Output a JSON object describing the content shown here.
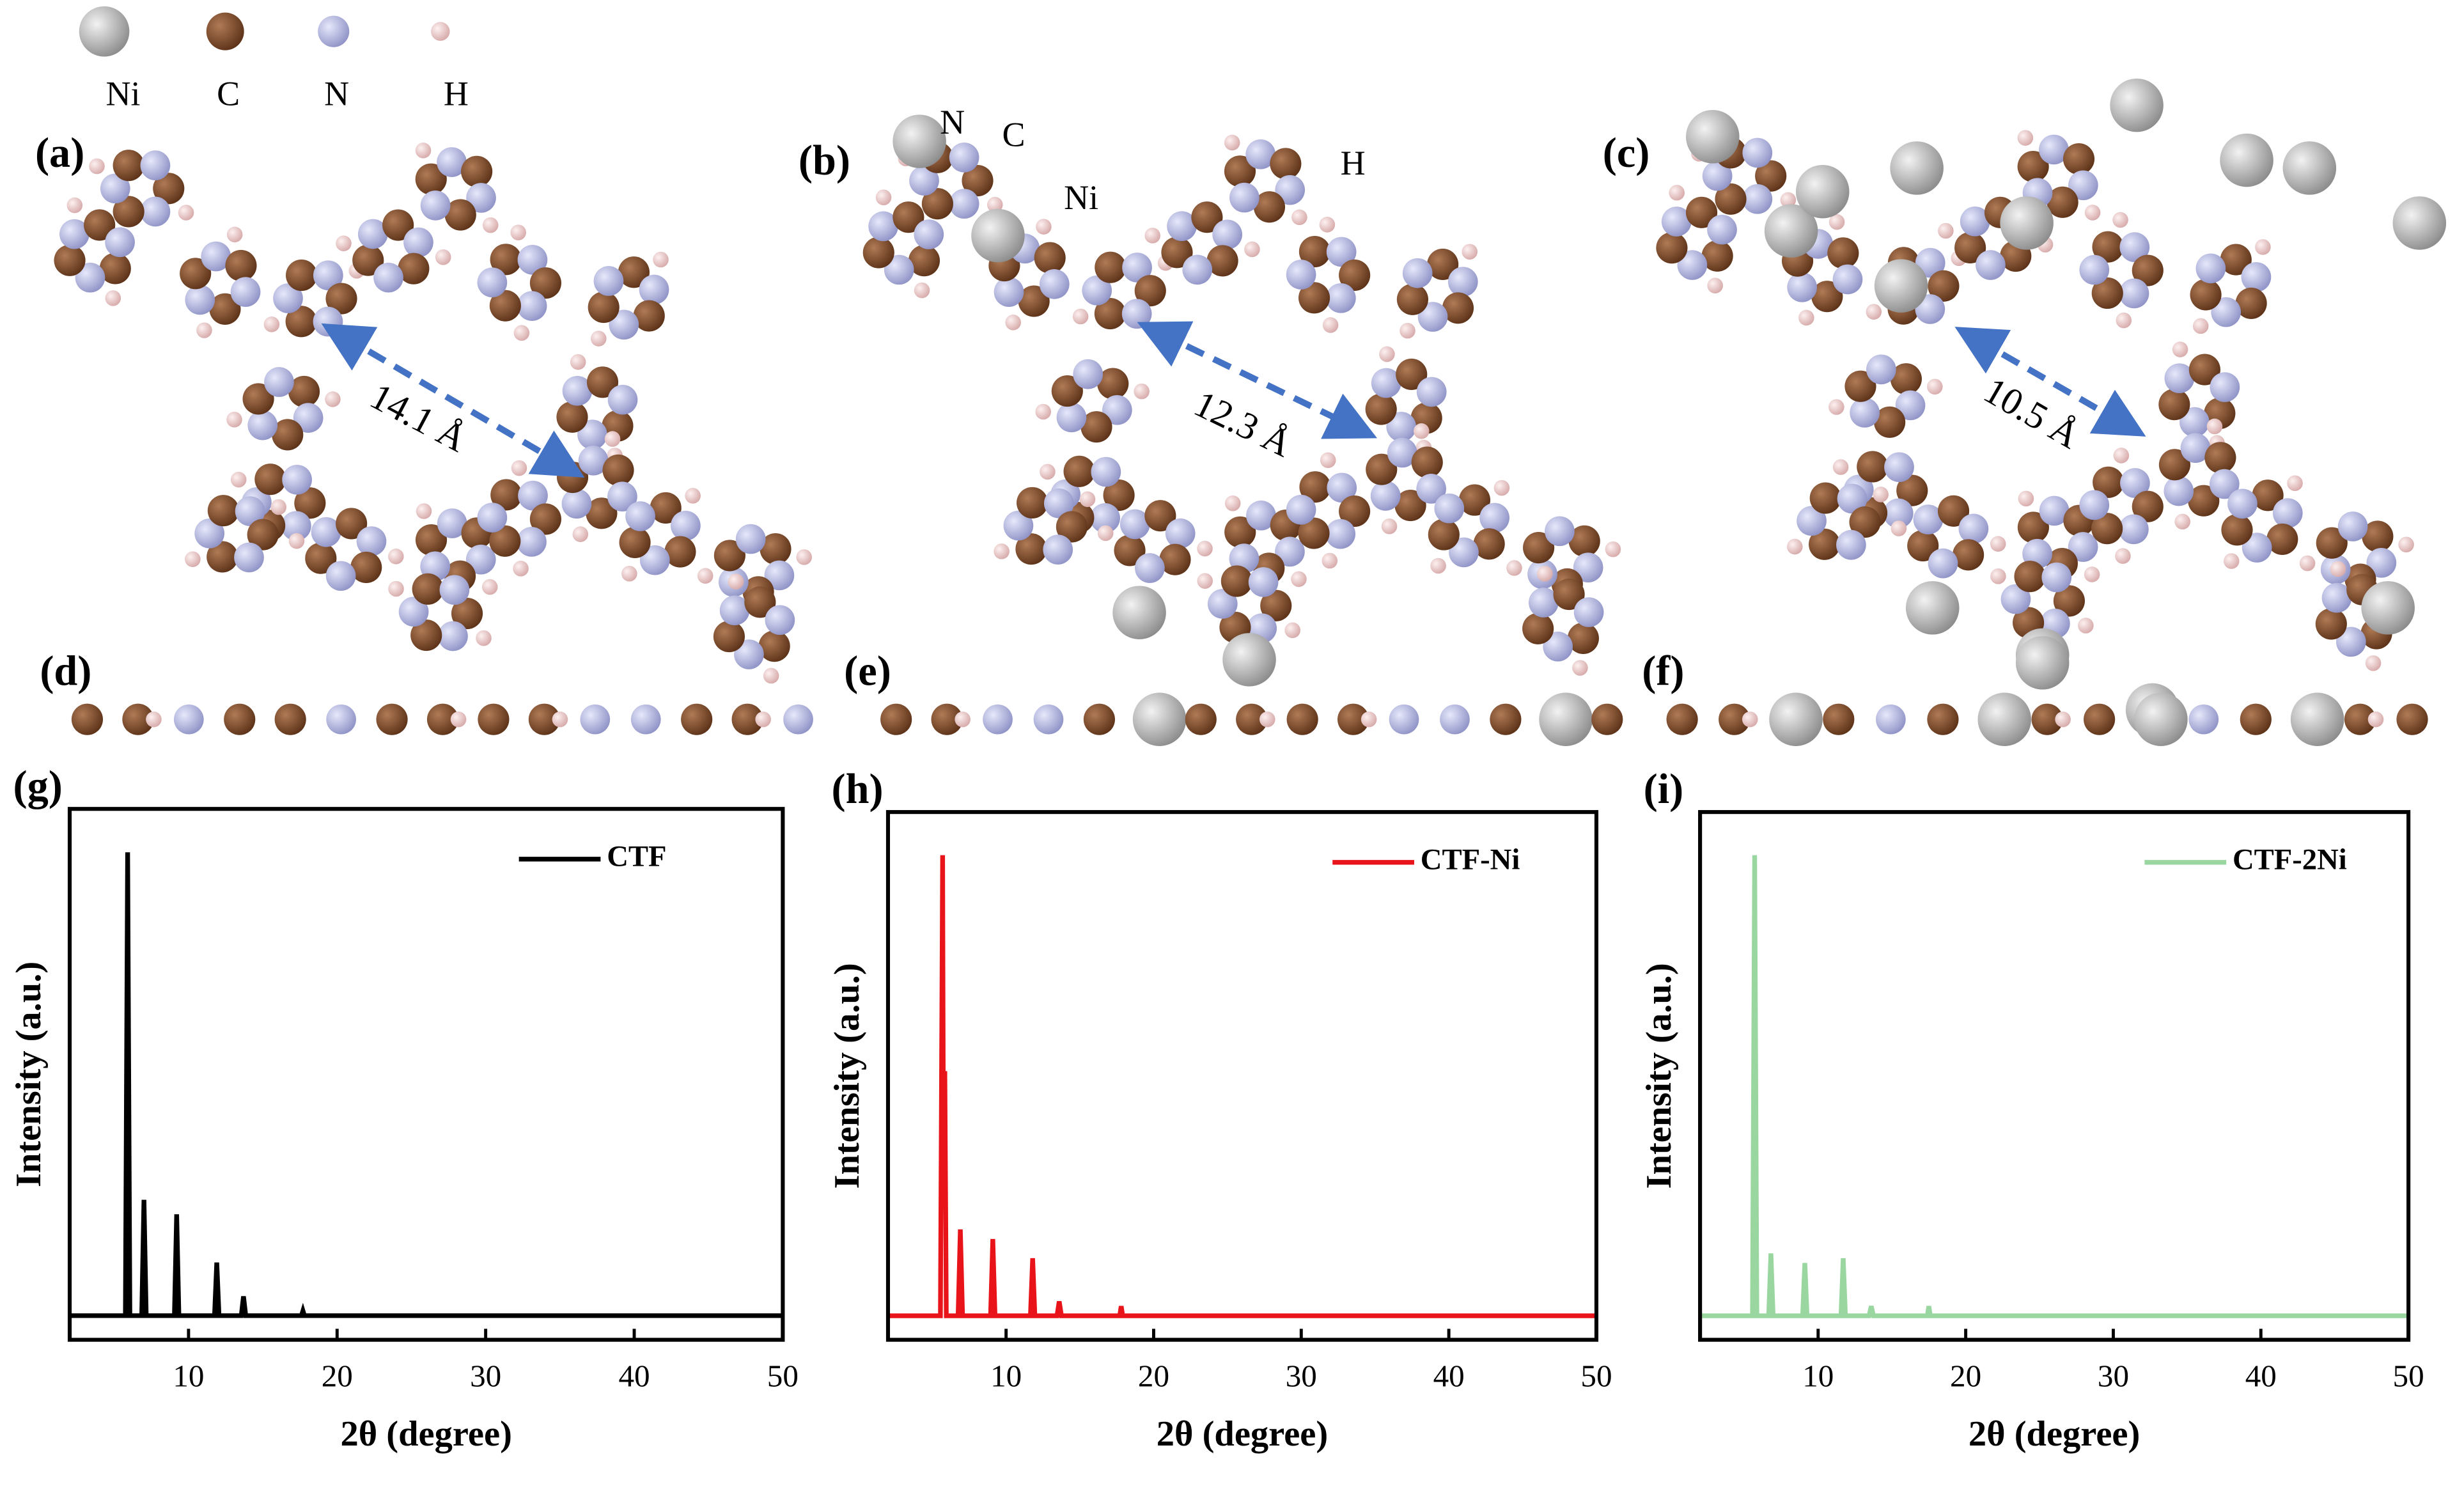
{
  "atom_legend": [
    "Ni",
    "C",
    "N",
    "H"
  ],
  "structures": [
    {
      "label": "(a)",
      "distance": "14.1 Å"
    },
    {
      "label": "(b)",
      "distance": "12.3 Å",
      "atom_labels": [
        "N",
        "C",
        "Ni",
        "H"
      ]
    },
    {
      "label": "(c)",
      "distance": "10.5 Å"
    }
  ],
  "side_views": [
    "(d)",
    "(e)",
    "(f)"
  ],
  "chart_data": [
    {
      "type": "line",
      "label": "(g)",
      "xlabel": "2θ (degree)",
      "ylabel": "Intensity (a.u.)",
      "x": [
        2,
        5.75,
        5.9,
        6.05,
        6.85,
        7.0,
        7.15,
        9.05,
        9.2,
        9.35,
        11.75,
        11.9,
        12.05,
        13.55,
        13.7,
        13.85,
        17.6,
        17.7,
        17.8,
        50
      ],
      "series": [
        {
          "name": "CTF",
          "color": "#000000",
          "values": [
            0,
            0,
            96,
            0,
            0,
            24,
            0,
            0,
            21,
            0,
            0,
            11,
            0,
            0,
            4,
            0,
            0,
            1,
            0,
            0
          ]
        }
      ],
      "xlim": [
        2,
        50
      ],
      "xticks": [
        10,
        20,
        30,
        40,
        50
      ],
      "ylim": [
        -5,
        105
      ],
      "legend": "upper right"
    },
    {
      "type": "line",
      "label": "(h)",
      "xlabel": "2θ (degree)",
      "ylabel": "Intensity (a.u.)",
      "x": [
        2,
        5.55,
        5.7,
        5.75,
        5.85,
        5.95,
        6.75,
        6.9,
        7.05,
        8.95,
        9.1,
        9.25,
        11.65,
        11.8,
        11.95,
        13.45,
        13.6,
        13.75,
        17.7,
        17.8,
        17.9,
        50
      ],
      "series": [
        {
          "name": "CTF-Ni",
          "color": "#e8141a",
          "values": [
            0,
            0,
            96,
            40,
            51,
            0,
            0,
            18,
            0,
            0,
            16,
            0,
            0,
            12,
            0,
            0,
            3,
            0,
            0,
            2,
            0,
            0
          ]
        }
      ],
      "xlim": [
        2,
        50
      ],
      "xticks": [
        10,
        20,
        30,
        40,
        50
      ],
      "ylim": [
        -5,
        105
      ],
      "legend": "upper right"
    },
    {
      "type": "line",
      "label": "(i)",
      "xlabel": "2θ (degree)",
      "ylabel": "Intensity (a.u.)",
      "x": [
        2,
        5.55,
        5.7,
        5.85,
        6.65,
        6.8,
        6.95,
        8.95,
        9.1,
        9.25,
        11.55,
        11.7,
        11.85,
        13.45,
        13.6,
        13.75,
        17.4,
        17.5,
        17.6,
        50
      ],
      "series": [
        {
          "name": "CTF-2Ni",
          "color": "#9ad6a0",
          "values": [
            0,
            0,
            96,
            0,
            0,
            13,
            0,
            0,
            11,
            0,
            0,
            12,
            0,
            0,
            2,
            0,
            0,
            2,
            0,
            0
          ]
        }
      ],
      "xlim": [
        2,
        50
      ],
      "xticks": [
        10,
        20,
        30,
        40,
        50
      ],
      "ylim": [
        -5,
        105
      ],
      "legend": "upper right"
    }
  ]
}
